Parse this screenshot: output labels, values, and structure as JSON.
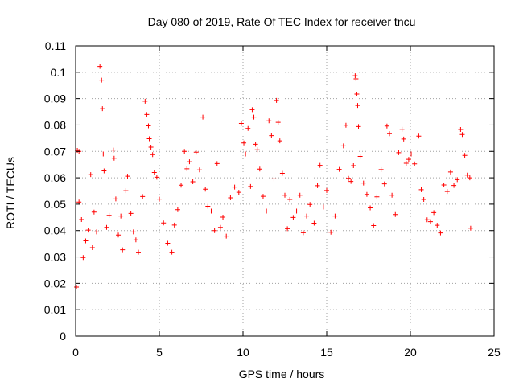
{
  "chart_data": {
    "type": "scatter",
    "title": "Day 080 of 2019, Rate Of TEC Index for receiver tncu",
    "xlabel": "GPS time / hours",
    "ylabel": "ROTI / TECUs",
    "xlim": [
      0,
      25
    ],
    "ylim": [
      0,
      0.11
    ],
    "x_ticks": [
      0,
      5,
      10,
      15,
      20,
      25
    ],
    "x_tick_labels": [
      "0",
      "5",
      "10",
      "15",
      "20",
      "25"
    ],
    "y_ticks": [
      0,
      0.01,
      0.02,
      0.03,
      0.04,
      0.05,
      0.06,
      0.07,
      0.08,
      0.09,
      0.1,
      0.11
    ],
    "y_tick_labels": [
      "0",
      "0.01",
      "0.02",
      "0.03",
      "0.04",
      "0.05",
      "0.06",
      "0.07",
      "0.08",
      "0.09",
      "0.1",
      "0.11"
    ],
    "grid": true,
    "marker": "+",
    "color": "#ff0000",
    "series": [
      {
        "name": "ROTI",
        "points": [
          [
            0.05,
            0.0186
          ],
          [
            0.1,
            0.0704
          ],
          [
            0.2,
            0.07
          ],
          [
            0.2,
            0.0508
          ],
          [
            0.35,
            0.0442
          ],
          [
            0.45,
            0.0298
          ],
          [
            0.6,
            0.0361
          ],
          [
            0.75,
            0.0402
          ],
          [
            0.9,
            0.0612
          ],
          [
            1.0,
            0.0335
          ],
          [
            1.1,
            0.047
          ],
          [
            1.25,
            0.0395
          ],
          [
            1.45,
            0.1022
          ],
          [
            1.55,
            0.097
          ],
          [
            1.6,
            0.0862
          ],
          [
            1.65,
            0.069
          ],
          [
            1.7,
            0.0626
          ],
          [
            1.85,
            0.0412
          ],
          [
            2.0,
            0.0458
          ],
          [
            2.25,
            0.0705
          ],
          [
            2.3,
            0.0674
          ],
          [
            2.4,
            0.052
          ],
          [
            2.55,
            0.0383
          ],
          [
            2.7,
            0.0455
          ],
          [
            2.8,
            0.0327
          ],
          [
            3.0,
            0.0551
          ],
          [
            3.1,
            0.0606
          ],
          [
            3.3,
            0.0465
          ],
          [
            3.45,
            0.0395
          ],
          [
            3.6,
            0.0365
          ],
          [
            3.75,
            0.0318
          ],
          [
            4.0,
            0.0529
          ],
          [
            4.15,
            0.089
          ],
          [
            4.25,
            0.084
          ],
          [
            4.35,
            0.0797
          ],
          [
            4.4,
            0.0748
          ],
          [
            4.5,
            0.0716
          ],
          [
            4.6,
            0.0688
          ],
          [
            4.7,
            0.062
          ],
          [
            4.85,
            0.0602
          ],
          [
            5.0,
            0.0519
          ],
          [
            5.25,
            0.0429
          ],
          [
            5.5,
            0.0352
          ],
          [
            5.75,
            0.0318
          ],
          [
            5.9,
            0.0421
          ],
          [
            6.1,
            0.0479
          ],
          [
            6.3,
            0.0572
          ],
          [
            6.5,
            0.07
          ],
          [
            6.65,
            0.0634
          ],
          [
            6.8,
            0.0661
          ],
          [
            7.0,
            0.0585
          ],
          [
            7.2,
            0.0697
          ],
          [
            7.4,
            0.063
          ],
          [
            7.6,
            0.083
          ],
          [
            7.75,
            0.0557
          ],
          [
            7.9,
            0.0492
          ],
          [
            8.1,
            0.0474
          ],
          [
            8.3,
            0.04
          ],
          [
            8.45,
            0.0654
          ],
          [
            8.65,
            0.0412
          ],
          [
            8.8,
            0.0451
          ],
          [
            9.0,
            0.0379
          ],
          [
            9.25,
            0.0524
          ],
          [
            9.5,
            0.0565
          ],
          [
            9.75,
            0.0545
          ],
          [
            9.9,
            0.0806
          ],
          [
            10.05,
            0.0732
          ],
          [
            10.15,
            0.069
          ],
          [
            10.3,
            0.0787
          ],
          [
            10.45,
            0.0567
          ],
          [
            10.55,
            0.0858
          ],
          [
            10.65,
            0.083
          ],
          [
            10.75,
            0.0727
          ],
          [
            10.85,
            0.0706
          ],
          [
            11.0,
            0.0633
          ],
          [
            11.2,
            0.053
          ],
          [
            11.4,
            0.0474
          ],
          [
            11.55,
            0.0816
          ],
          [
            11.7,
            0.076
          ],
          [
            11.85,
            0.0596
          ],
          [
            12.0,
            0.0893
          ],
          [
            12.1,
            0.081
          ],
          [
            12.2,
            0.074
          ],
          [
            12.35,
            0.0617
          ],
          [
            12.5,
            0.0534
          ],
          [
            12.65,
            0.0407
          ],
          [
            12.8,
            0.0518
          ],
          [
            13.0,
            0.045
          ],
          [
            13.2,
            0.0474
          ],
          [
            13.4,
            0.0534
          ],
          [
            13.6,
            0.0392
          ],
          [
            13.8,
            0.0455
          ],
          [
            14.0,
            0.0499
          ],
          [
            14.25,
            0.0428
          ],
          [
            14.45,
            0.057
          ],
          [
            14.6,
            0.0647
          ],
          [
            14.8,
            0.0489
          ],
          [
            15.0,
            0.0552
          ],
          [
            15.25,
            0.0394
          ],
          [
            15.5,
            0.0455
          ],
          [
            15.75,
            0.0632
          ],
          [
            16.0,
            0.0721
          ],
          [
            16.15,
            0.0799
          ],
          [
            16.3,
            0.0598
          ],
          [
            16.45,
            0.0586
          ],
          [
            16.6,
            0.0646
          ],
          [
            16.7,
            0.0987
          ],
          [
            16.75,
            0.0975
          ],
          [
            16.8,
            0.0917
          ],
          [
            16.85,
            0.0874
          ],
          [
            16.9,
            0.0794
          ],
          [
            17.0,
            0.0681
          ],
          [
            17.2,
            0.058
          ],
          [
            17.4,
            0.0537
          ],
          [
            17.6,
            0.0486
          ],
          [
            17.8,
            0.0419
          ],
          [
            18.0,
            0.0528
          ],
          [
            18.25,
            0.0631
          ],
          [
            18.45,
            0.0577
          ],
          [
            18.6,
            0.0796
          ],
          [
            18.75,
            0.0767
          ],
          [
            18.9,
            0.0534
          ],
          [
            19.1,
            0.0461
          ],
          [
            19.3,
            0.0695
          ],
          [
            19.5,
            0.0784
          ],
          [
            19.6,
            0.0747
          ],
          [
            19.75,
            0.0655
          ],
          [
            19.9,
            0.067
          ],
          [
            20.05,
            0.069
          ],
          [
            20.25,
            0.0653
          ],
          [
            20.5,
            0.0758
          ],
          [
            20.65,
            0.0555
          ],
          [
            20.8,
            0.0518
          ],
          [
            21.0,
            0.0441
          ],
          [
            21.2,
            0.0434
          ],
          [
            21.4,
            0.0468
          ],
          [
            21.6,
            0.042
          ],
          [
            21.8,
            0.0391
          ],
          [
            22.0,
            0.0573
          ],
          [
            22.2,
            0.0548
          ],
          [
            22.4,
            0.0622
          ],
          [
            22.6,
            0.0571
          ],
          [
            22.8,
            0.0593
          ],
          [
            23.0,
            0.0783
          ],
          [
            23.1,
            0.0764
          ],
          [
            23.25,
            0.0685
          ],
          [
            23.4,
            0.061
          ],
          [
            23.55,
            0.06
          ],
          [
            23.6,
            0.0409
          ]
        ]
      }
    ]
  }
}
